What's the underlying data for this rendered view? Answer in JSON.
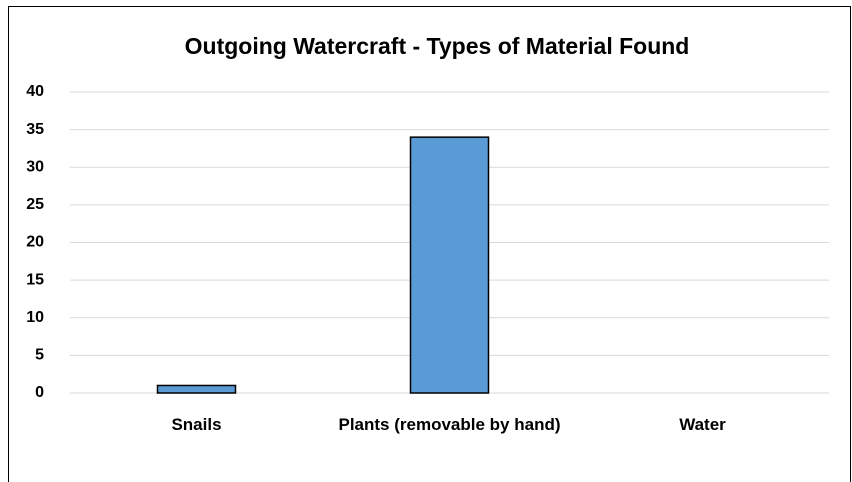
{
  "chart_data": {
    "type": "bar",
    "title": "Outgoing Watercraft - Types of Material Found",
    "categories": [
      "Snails",
      "Plants (removable by hand)",
      "Water"
    ],
    "values": [
      1,
      34,
      0
    ],
    "color": "#5b9bd5",
    "ylim": [
      0,
      40
    ],
    "yticks": [
      0,
      5,
      10,
      15,
      20,
      25,
      30,
      35,
      40
    ],
    "grid": true
  }
}
